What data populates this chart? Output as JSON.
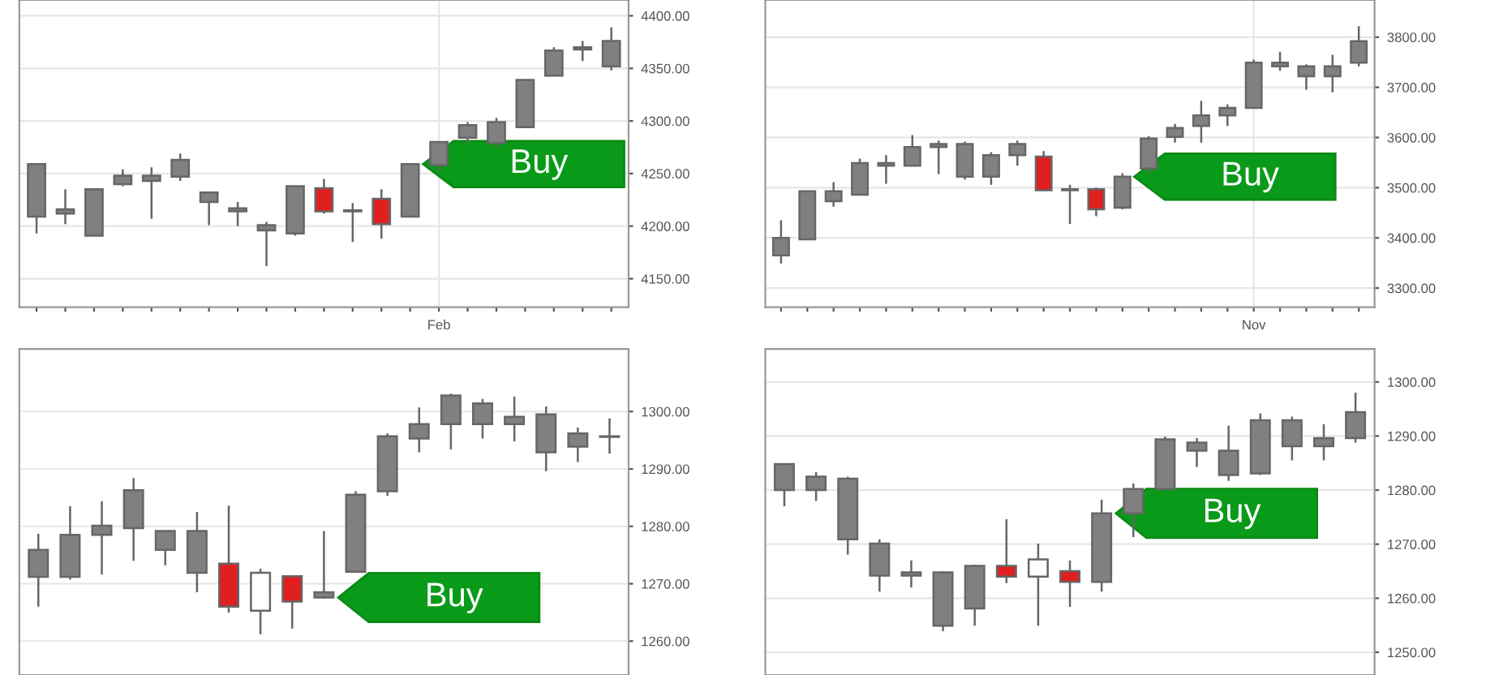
{
  "chart_data": [
    {
      "type": "candlestick",
      "categories": [
        null,
        null,
        null,
        null,
        null,
        null,
        null,
        null,
        null,
        null,
        null,
        null,
        null,
        null,
        "Feb",
        null,
        null,
        null,
        null,
        null,
        null
      ],
      "series": [
        {
          "color": "#808080",
          "ohlc": [
            [
              4259,
              4259,
              4193,
              4209
            ],
            [
              4212,
              4235,
              4202,
              4216
            ],
            [
              4191,
              4235,
              4191,
              4235
            ],
            [
              4240,
              4254,
              4238,
              4248
            ],
            [
              4243,
              4256,
              4207,
              4248
            ],
            [
              4263,
              4269,
              4243,
              4247
            ],
            [
              4232,
              4232,
              4201,
              4223
            ],
            [
              4217,
              4223,
              4200,
              4214
            ],
            [
              4196,
              4204,
              4162,
              4201
            ],
            [
              4193,
              4238,
              4191,
              4238
            ],
            null,
            [
              4215,
              4222,
              4185,
              4214
            ],
            null,
            [
              4209,
              4259,
              4209,
              4259
            ],
            [
              4258,
              4280,
              4252,
              4280
            ],
            [
              4284,
              4299,
              4279,
              4296
            ],
            [
              4299,
              4303,
              4275,
              4279
            ],
            [
              4294,
              4339,
              4294,
              4339
            ],
            [
              4343,
              4370,
              4343,
              4367
            ],
            [
              4368,
              4376,
              4357,
              4370
            ],
            [
              4376,
              4389,
              4348,
              4352
            ]
          ]
        },
        {
          "color": "#e02020",
          "ohlc": [
            null,
            null,
            null,
            null,
            null,
            null,
            null,
            null,
            null,
            null,
            [
              4236,
              4245,
              4212,
              4214
            ],
            null,
            [
              4226,
              4235,
              4188,
              4202
            ],
            null,
            null,
            null,
            null,
            null,
            null,
            null,
            null
          ]
        }
      ],
      "ylim": [
        4123,
        4415
      ],
      "yticks": [
        {
          "value": 4150,
          "label": "4150.00"
        },
        {
          "value": 4200,
          "label": "4200.00"
        },
        {
          "value": 4250,
          "label": "4250.00"
        },
        {
          "value": 4300,
          "label": "4300.00"
        },
        {
          "value": 4350,
          "label": "4350.00"
        },
        {
          "value": 4400,
          "label": "4400.00"
        }
      ],
      "grid": true,
      "annotations": [
        "Buy"
      ]
    },
    {
      "type": "candlestick",
      "categories": [
        null,
        null,
        null,
        null,
        null,
        null,
        null,
        null,
        null,
        null,
        null,
        null,
        null,
        null,
        null,
        null,
        null,
        null,
        "Nov",
        null,
        null,
        null,
        null
      ],
      "series": [
        {
          "color": "#808080",
          "ohlc": [
            [
              3365,
              3435,
              3349,
              3400
            ],
            [
              3397,
              3495,
              3397,
              3493
            ],
            [
              3493,
              3511,
              3462,
              3473
            ],
            [
              3486,
              3558,
              3484,
              3549
            ],
            [
              3549,
              3565,
              3508,
              3544
            ],
            [
              3544,
              3605,
              3544,
              3581
            ],
            [
              3581,
              3594,
              3527,
              3587
            ],
            [
              3587,
              3592,
              3516,
              3522
            ],
            [
              3522,
              3571,
              3506,
              3565
            ],
            [
              3565,
              3594,
              3544,
              3587
            ],
            null,
            [
              3495,
              3506,
              3428,
              3497
            ],
            null,
            [
              3460,
              3529,
              3457,
              3522
            ],
            [
              3538,
              3603,
              3529,
              3598
            ],
            [
              3601,
              3627,
              3590,
              3619
            ],
            [
              3623,
              3673,
              3590,
              3644
            ],
            [
              3644,
              3666,
              3623,
              3659
            ],
            [
              3659,
              3755,
              3659,
              3749
            ],
            [
              3749,
              3771,
              3733,
              3742
            ],
            [
              3742,
              3746,
              3695,
              3722
            ],
            [
              3722,
              3765,
              3690,
              3742
            ],
            [
              3749,
              3822,
              3742,
              3792
            ]
          ]
        },
        {
          "color": "#e02020",
          "ohlc": [
            null,
            null,
            null,
            null,
            null,
            null,
            null,
            null,
            null,
            null,
            [
              3562,
              3573,
              3493,
              3495
            ],
            null,
            [
              3497,
              3500,
              3443,
              3457
            ],
            null,
            null,
            null,
            null,
            null,
            null,
            null,
            null,
            null,
            null
          ]
        }
      ],
      "ylim": [
        3262,
        3874
      ],
      "yticks": [
        {
          "value": 3300,
          "label": "3300.00"
        },
        {
          "value": 3400,
          "label": "3400.00"
        },
        {
          "value": 3500,
          "label": "3500.00"
        },
        {
          "value": 3600,
          "label": "3600.00"
        },
        {
          "value": 3700,
          "label": "3700.00"
        },
        {
          "value": 3800,
          "label": "3800.00"
        }
      ],
      "grid": true,
      "annotations": [
        "Buy"
      ]
    },
    {
      "type": "candlestick",
      "categories": [
        null,
        null,
        null,
        null,
        null,
        null,
        null,
        null,
        null,
        null,
        null,
        null,
        null,
        null,
        null,
        null,
        null,
        null,
        null
      ],
      "series": [
        {
          "color": "#808080",
          "ohlc": [
            [
              1275.9,
              1278.7,
              1266.0,
              1271.2
            ],
            [
              1271.2,
              1283.5,
              1270.7,
              1278.5
            ],
            [
              1278.5,
              1284.4,
              1271.6,
              1280.1
            ],
            [
              1286.3,
              1288.4,
              1274.0,
              1279.7
            ],
            [
              1279.2,
              1279.2,
              1273.2,
              1275.9
            ],
            [
              1279.2,
              1282.5,
              1268.5,
              1271.9
            ],
            null,
            null,
            null,
            [
              1268.5,
              1279.2,
              1267.4,
              1267.6
            ],
            [
              1272.1,
              1286.1,
              1272.1,
              1285.5
            ],
            [
              1286.1,
              1296.2,
              1285.3,
              1295.7
            ],
            [
              1295.3,
              1300.7,
              1292.9,
              1297.8
            ],
            [
              1297.8,
              1303.1,
              1293.4,
              1302.8
            ],
            [
              1301.4,
              1302.2,
              1295.3,
              1297.8
            ],
            [
              1297.8,
              1302.6,
              1294.8,
              1299.1
            ],
            [
              1299.5,
              1300.9,
              1289.6,
              1292.9
            ],
            [
              1293.9,
              1297.2,
              1291.2,
              1296.2
            ],
            [
              1295.7,
              1298.8,
              1292.7,
              1295.6
            ]
          ]
        },
        {
          "color": "#e02020",
          "colors": [
            null,
            null,
            null,
            null,
            null,
            null,
            "#e02020",
            "#ffffff",
            "#e02020",
            null,
            null,
            null,
            null,
            null,
            null,
            null,
            null,
            null,
            null
          ],
          "ohlc": [
            null,
            null,
            null,
            null,
            null,
            null,
            [
              1273.5,
              1283.6,
              1265.0,
              1266.0
            ],
            [
              1265.3,
              1272.6,
              1261.2,
              1271.9
            ],
            [
              1271.3,
              1271.3,
              1262.2,
              1266.9
            ],
            null,
            null,
            null,
            null,
            null,
            null,
            null,
            null,
            null,
            null
          ]
        }
      ],
      "ylim": [
        1254.1,
        1310.9
      ],
      "yticks": [
        {
          "value": 1260,
          "label": "1260.00"
        },
        {
          "value": 1270,
          "label": "1270.00"
        },
        {
          "value": 1280,
          "label": "1280.00"
        },
        {
          "value": 1290,
          "label": "1290.00"
        },
        {
          "value": 1300,
          "label": "1300.00"
        }
      ],
      "grid": true,
      "annotations": [
        "Buy"
      ]
    },
    {
      "type": "candlestick",
      "categories": [
        null,
        null,
        null,
        null,
        null,
        null,
        null,
        null,
        null,
        null,
        null,
        null,
        null,
        null,
        null,
        null,
        null,
        null,
        null
      ],
      "series": [
        {
          "color": "#808080",
          "ohlc": [
            [
              1284.8,
              1284.8,
              1277.0,
              1280.0
            ],
            [
              1280.0,
              1283.3,
              1278.0,
              1282.5
            ],
            [
              1282.1,
              1282.5,
              1268.1,
              1270.9
            ],
            [
              1270.1,
              1270.9,
              1261.2,
              1264.2
            ],
            [
              1264.2,
              1267.0,
              1262.0,
              1264.8
            ],
            [
              1264.8,
              1265.0,
              1253.9,
              1254.9
            ],
            [
              1258.1,
              1266.2,
              1254.9,
              1266.0
            ],
            null,
            null,
            null,
            [
              1263.0,
              1278.2,
              1261.2,
              1275.7
            ],
            [
              1275.7,
              1281.2,
              1271.3,
              1280.2
            ],
            [
              1280.2,
              1289.9,
              1280.0,
              1289.4
            ],
            [
              1288.8,
              1289.6,
              1284.3,
              1287.3
            ],
            [
              1287.3,
              1291.9,
              1281.7,
              1282.8
            ],
            [
              1283.1,
              1294.2,
              1282.8,
              1292.9
            ],
            [
              1292.9,
              1293.6,
              1285.5,
              1288.1
            ],
            [
              1288.1,
              1292.2,
              1285.5,
              1289.6
            ],
            [
              1289.6,
              1298.0,
              1288.8,
              1294.4
            ]
          ]
        },
        {
          "color": "#e02020",
          "colors": [
            null,
            null,
            null,
            null,
            null,
            null,
            null,
            "#e02020",
            "#ffffff",
            "#e02020",
            null,
            null,
            null,
            null,
            null,
            null,
            null,
            null,
            null
          ],
          "ohlc": [
            null,
            null,
            null,
            null,
            null,
            null,
            null,
            [
              1266.0,
              1274.6,
              1262.8,
              1264.0
            ],
            [
              1264.0,
              1270.1,
              1254.9,
              1267.2
            ],
            [
              1265.0,
              1267.0,
              1258.4,
              1263.0
            ],
            null,
            null,
            null,
            null,
            null,
            null,
            null,
            null,
            null
          ]
        }
      ],
      "ylim": [
        1245.8,
        1306.1
      ],
      "yticks": [
        {
          "value": 1250,
          "label": "1250.00"
        },
        {
          "value": 1260,
          "label": "1260.00"
        },
        {
          "value": 1270,
          "label": "1270.00"
        },
        {
          "value": 1280,
          "label": "1280.00"
        },
        {
          "value": 1290,
          "label": "1290.00"
        },
        {
          "value": 1300,
          "label": "1300.00"
        }
      ],
      "grid": true,
      "annotations": [
        "Buy"
      ]
    }
  ]
}
